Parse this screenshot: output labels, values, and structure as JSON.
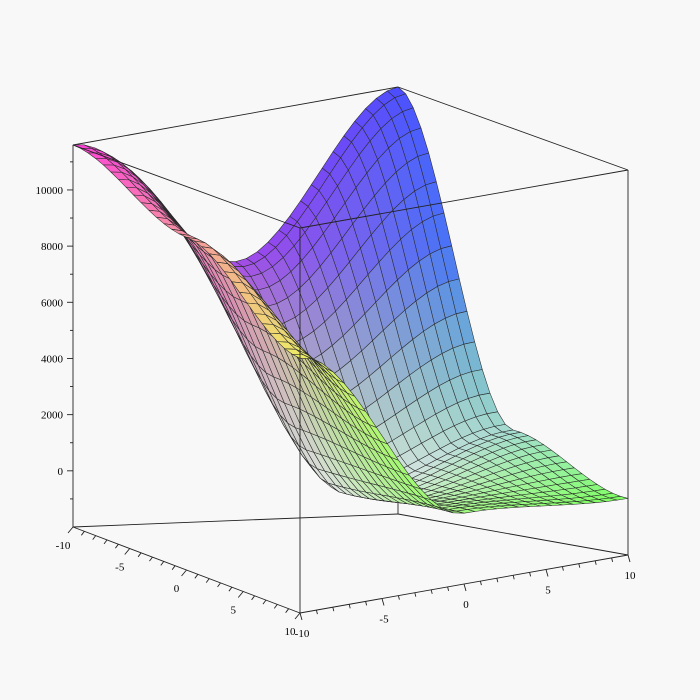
{
  "chart_data": {
    "type": "surface3d",
    "title": "",
    "xlabel": "",
    "ylabel": "",
    "zlabel": "",
    "x_range": [
      -10,
      10
    ],
    "y_range": [
      -10,
      10
    ],
    "z_range": [
      -2000,
      11600
    ],
    "grid_resolution": 30,
    "surface_samples": {
      "x": [
        -10,
        0,
        10
      ],
      "y": [
        -10,
        0,
        10
      ],
      "z": [
        [
          11600,
          6700,
          11600
        ],
        [
          9800,
          0,
          1500
        ],
        [
          7000,
          500,
          0
        ]
      ]
    },
    "x_ticks": [
      {
        "value": -10,
        "label": "-10"
      },
      {
        "value": -5,
        "label": "-5"
      },
      {
        "value": 0,
        "label": "0"
      },
      {
        "value": 5,
        "label": "5"
      },
      {
        "value": 10,
        "label": "10"
      }
    ],
    "y_ticks": [
      {
        "value": -10,
        "label": "-10"
      },
      {
        "value": -5,
        "label": "-5"
      },
      {
        "value": 0,
        "label": "0"
      },
      {
        "value": 5,
        "label": "5"
      },
      {
        "value": 10,
        "label": "10"
      }
    ],
    "z_ticks": [
      {
        "value": 0,
        "label": "0"
      },
      {
        "value": 2000,
        "label": "2000"
      },
      {
        "value": 4000,
        "label": "4000"
      },
      {
        "value": 6000,
        "label": "6000"
      },
      {
        "value": 8000,
        "label": "8000"
      },
      {
        "value": 10000,
        "label": "10000"
      }
    ],
    "box": true,
    "colors": {
      "background": "#f8f8f8",
      "corner_x_min_y_min": "#ff40d8",
      "corner_x_min_y_max": "#4a4aff",
      "corner_x_max_y_min": "#f0f060",
      "corner_x_max_y_max": "#40ffe0",
      "center_low": "#f4f4f4",
      "bottom_low": "#80ff40"
    }
  }
}
